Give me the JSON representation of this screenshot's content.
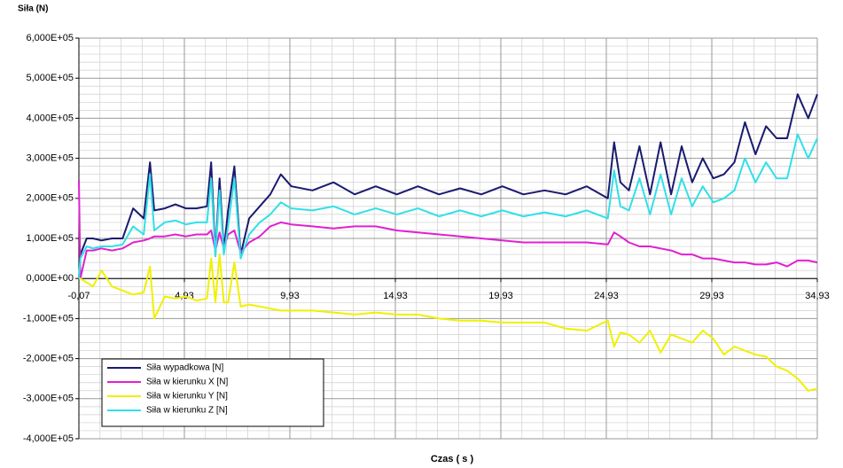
{
  "chart_data": {
    "type": "line",
    "title": "Siła (N)",
    "x_label": "Czas ( s )",
    "x": [
      -0.07,
      0.0,
      0.3,
      0.6,
      1.0,
      1.5,
      2.0,
      2.5,
      3.0,
      3.3,
      3.5,
      4.0,
      4.5,
      5.0,
      5.5,
      6.0,
      6.2,
      6.4,
      6.6,
      6.8,
      7.0,
      7.3,
      7.6,
      8.0,
      8.5,
      9.0,
      9.5,
      10.0,
      11.0,
      12.0,
      13.0,
      14.0,
      15.0,
      16.0,
      17.0,
      18.0,
      19.0,
      20.0,
      21.0,
      22.0,
      23.0,
      24.0,
      25.0,
      25.3,
      25.6,
      26.0,
      26.5,
      27.0,
      27.5,
      28.0,
      28.5,
      29.0,
      29.5,
      30.0,
      30.5,
      31.0,
      31.5,
      32.0,
      32.5,
      33.0,
      33.5,
      34.0,
      34.5,
      34.93
    ],
    "series": [
      {
        "name": "Siła wypadkowa [N]",
        "color": "#1a1a70",
        "values": [
          0,
          60000,
          100000,
          100000,
          95000,
          100000,
          100000,
          175000,
          150000,
          290000,
          170000,
          175000,
          185000,
          175000,
          175000,
          180000,
          290000,
          60000,
          250000,
          70000,
          170000,
          280000,
          60000,
          150000,
          180000,
          210000,
          260000,
          230000,
          220000,
          240000,
          210000,
          230000,
          210000,
          230000,
          210000,
          225000,
          210000,
          230000,
          210000,
          220000,
          210000,
          230000,
          200000,
          340000,
          240000,
          220000,
          330000,
          210000,
          340000,
          210000,
          330000,
          240000,
          300000,
          250000,
          260000,
          290000,
          390000,
          310000,
          380000,
          350000,
          350000,
          460000,
          400000,
          460000
        ]
      },
      {
        "name": "Siła w kierunku X [N]",
        "color": "#e020d0",
        "values": [
          245000,
          0,
          70000,
          70000,
          75000,
          70000,
          75000,
          90000,
          95000,
          100000,
          105000,
          105000,
          110000,
          105000,
          110000,
          110000,
          120000,
          70000,
          115000,
          75000,
          110000,
          120000,
          65000,
          90000,
          105000,
          130000,
          140000,
          135000,
          130000,
          125000,
          130000,
          130000,
          120000,
          115000,
          110000,
          105000,
          100000,
          95000,
          90000,
          90000,
          90000,
          90000,
          85000,
          115000,
          105000,
          90000,
          80000,
          80000,
          75000,
          70000,
          60000,
          60000,
          50000,
          50000,
          45000,
          40000,
          40000,
          35000,
          35000,
          40000,
          30000,
          45000,
          45000,
          40000
        ]
      },
      {
        "name": "Siła w kierunku Y [N]",
        "color": "#f0f000",
        "values": [
          0,
          0,
          -10000,
          -20000,
          20000,
          -20000,
          -30000,
          -40000,
          -35000,
          30000,
          -100000,
          -45000,
          -50000,
          -45000,
          -55000,
          -50000,
          50000,
          -60000,
          60000,
          -60000,
          -60000,
          40000,
          -70000,
          -65000,
          -70000,
          -75000,
          -80000,
          -80000,
          -80000,
          -85000,
          -90000,
          -85000,
          -90000,
          -90000,
          -100000,
          -105000,
          -105000,
          -110000,
          -110000,
          -110000,
          -125000,
          -130000,
          -105000,
          -170000,
          -135000,
          -140000,
          -160000,
          -130000,
          -185000,
          -140000,
          -150000,
          -160000,
          -130000,
          -150000,
          -190000,
          -170000,
          -180000,
          -190000,
          -195000,
          -220000,
          -230000,
          -250000,
          -280000,
          -275000
        ]
      },
      {
        "name": "Siła w kierunku Z [N]",
        "color": "#30e0e8",
        "values": [
          0,
          50000,
          80000,
          75000,
          80000,
          80000,
          85000,
          130000,
          110000,
          260000,
          120000,
          140000,
          145000,
          135000,
          140000,
          140000,
          250000,
          55000,
          220000,
          60000,
          130000,
          250000,
          50000,
          110000,
          140000,
          160000,
          190000,
          175000,
          170000,
          180000,
          160000,
          175000,
          160000,
          175000,
          155000,
          170000,
          155000,
          170000,
          155000,
          165000,
          155000,
          170000,
          150000,
          270000,
          180000,
          170000,
          250000,
          160000,
          260000,
          160000,
          250000,
          180000,
          230000,
          190000,
          200000,
          220000,
          300000,
          240000,
          290000,
          250000,
          250000,
          360000,
          300000,
          350000
        ]
      }
    ],
    "xlim": [
      -0.07,
      34.93
    ],
    "xticks": [
      {
        "value": -0.07,
        "label": "-0,07"
      },
      {
        "value": 4.93,
        "label": "4,93"
      },
      {
        "value": 9.93,
        "label": "9,93"
      },
      {
        "value": 14.93,
        "label": "14,93"
      },
      {
        "value": 19.93,
        "label": "19,93"
      },
      {
        "value": 24.93,
        "label": "24,93"
      },
      {
        "value": 29.93,
        "label": "29,93"
      },
      {
        "value": 34.93,
        "label": "34,93"
      }
    ],
    "ylim": [
      -400000,
      600000
    ],
    "yticks": [
      {
        "value": -400000,
        "label": "-4,000E+05"
      },
      {
        "value": -300000,
        "label": "-3,000E+05"
      },
      {
        "value": -200000,
        "label": "-2,000E+05"
      },
      {
        "value": -100000,
        "label": "-1,000E+05"
      },
      {
        "value": 0,
        "label": "0,000E+00"
      },
      {
        "value": 100000,
        "label": "1,000E+05"
      },
      {
        "value": 200000,
        "label": "2,000E+05"
      },
      {
        "value": 300000,
        "label": "3,000E+05"
      },
      {
        "value": 400000,
        "label": "4,000E+05"
      },
      {
        "value": 500000,
        "label": "5,000E+05"
      },
      {
        "value": 600000,
        "label": "6,000E+05"
      }
    ],
    "grid": true,
    "minor_divisions": 5,
    "legend": "bottom-left"
  }
}
